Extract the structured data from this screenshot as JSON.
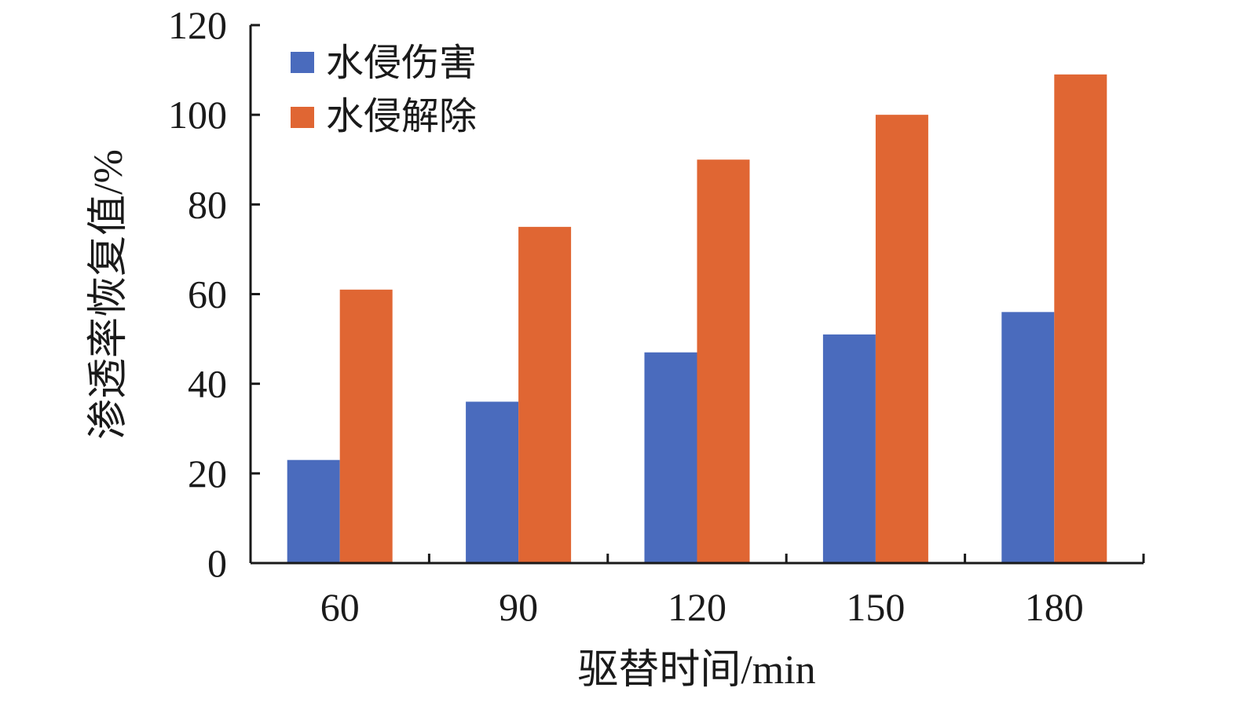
{
  "chart_data": {
    "type": "bar",
    "categories": [
      "60",
      "90",
      "120",
      "150",
      "180"
    ],
    "series": [
      {
        "name": "水侵伤害",
        "color": "#4a6bbd",
        "values": [
          23,
          36,
          47,
          51,
          56
        ]
      },
      {
        "name": "水侵解除",
        "color": "#e06633",
        "values": [
          61,
          75,
          90,
          100,
          109
        ]
      }
    ],
    "xlabel": "驱替时间/min",
    "ylabel": "渗透率恢复值/%",
    "ylim": [
      0,
      120
    ],
    "yticks": [
      "0",
      "20",
      "40",
      "60",
      "80",
      "100",
      "120"
    ],
    "grid": false,
    "legend_position": "top-left"
  }
}
